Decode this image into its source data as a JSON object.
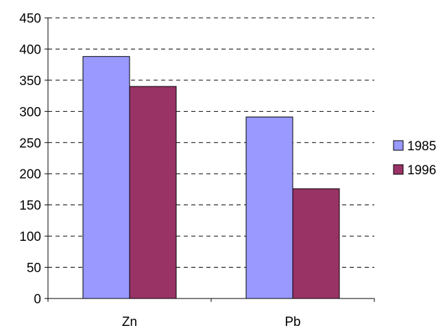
{
  "chart_data": {
    "type": "bar",
    "categories": [
      "Zn",
      "Pb"
    ],
    "series": [
      {
        "name": "1985",
        "values": [
          388,
          291
        ],
        "color": "#9999ff"
      },
      {
        "name": "1996",
        "values": [
          340,
          176
        ],
        "color": "#993366"
      }
    ],
    "ylim": [
      0,
      450
    ],
    "yticks": [
      "0",
      "50",
      "100",
      "150",
      "200",
      "250",
      "300",
      "350",
      "400",
      "450"
    ],
    "grid": true,
    "grid_style": "dashed",
    "legend_position": "right"
  }
}
